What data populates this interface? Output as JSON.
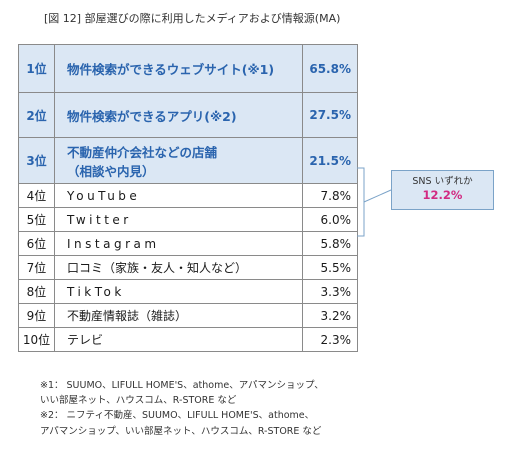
{
  "title": "[図 12] 部屋選びの際に利用したメディアおよび情報源(MA)",
  "chart_data": {
    "type": "table",
    "rows": [
      {
        "rank": "1位",
        "name": "物件検索ができるウェブサイト(※1)",
        "name_lines": [
          "物件検索ができるウェブサイト(※1)"
        ],
        "percent": "65.8%",
        "value": 65.8,
        "highlight": true
      },
      {
        "rank": "2位",
        "name": "物件検索ができるアプリ(※2)",
        "name_lines": [
          "物件検索ができるアプリ(※2)"
        ],
        "percent": "27.5%",
        "value": 27.5,
        "highlight": true
      },
      {
        "rank": "3位",
        "name": "不動産仲介会社などの店舗（相談や内見）",
        "name_lines": [
          "不動産仲介会社などの店舗",
          "（相談や内見）"
        ],
        "percent": "21.5%",
        "value": 21.5,
        "highlight": true
      },
      {
        "rank": "4位",
        "name": "YouTube",
        "name_lines": [
          "YouTube"
        ],
        "percent": "7.8%",
        "value": 7.8,
        "highlight": false,
        "spaced": true
      },
      {
        "rank": "5位",
        "name": "Twitter",
        "name_lines": [
          "Twitter"
        ],
        "percent": "6.0%",
        "value": 6.0,
        "highlight": false,
        "spaced": true
      },
      {
        "rank": "6位",
        "name": "Instagram",
        "name_lines": [
          "Instagram"
        ],
        "percent": "5.8%",
        "value": 5.8,
        "highlight": false,
        "spaced": true
      },
      {
        "rank": "7位",
        "name": "口コミ（家族・友人・知人など）",
        "name_lines": [
          "口コミ（家族・友人・知人など）"
        ],
        "percent": "5.5%",
        "value": 5.5,
        "highlight": false
      },
      {
        "rank": "8位",
        "name": "TikTok",
        "name_lines": [
          "TikTok"
        ],
        "percent": "3.3%",
        "value": 3.3,
        "highlight": false,
        "spaced": true
      },
      {
        "rank": "9位",
        "name": "不動産情報誌（雑誌）",
        "name_lines": [
          "不動産情報誌（雑誌）"
        ],
        "percent": "3.2%",
        "value": 3.2,
        "highlight": false
      },
      {
        "rank": "10位",
        "name": "テレビ",
        "name_lines": [
          "テレビ"
        ],
        "percent": "2.3%",
        "value": 2.3,
        "highlight": false
      }
    ],
    "annotation": {
      "label": "SNS いずれか",
      "value": "12.2%"
    },
    "colors": {
      "highlight_bg": "#dbe7f4",
      "highlight_text": "#2a64ae",
      "annotation_value": "#d22a82",
      "bracket": "#7ba3c8"
    }
  },
  "notes": [
    "※1：  SUUMO、LIFULL HOME'S、athome、アパマンショップ、",
    "いい部屋ネット、ハウスコム、R-STORE など",
    "※2：  ニフティ不動産、SUUMO、LIFULL HOME'S、athome、",
    "アパマンショップ、いい部屋ネット、ハウスコム、R-STORE など"
  ]
}
